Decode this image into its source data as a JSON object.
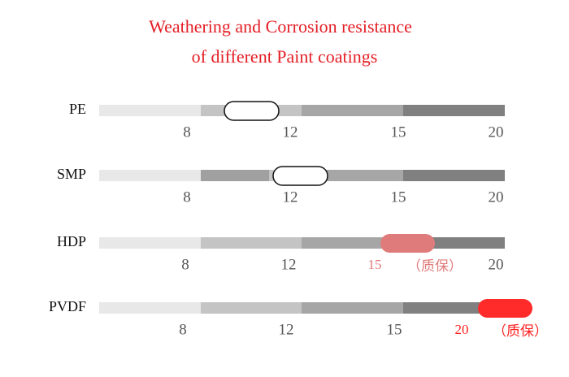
{
  "title": [
    "Weathering and Corrosion resistance",
    "of different Paint coatings"
  ],
  "rows": [
    {
      "name": "PE",
      "ticks": [
        "8",
        "12",
        "15",
        "20"
      ]
    },
    {
      "name": "SMP",
      "ticks": [
        "8",
        "12",
        "15",
        "20"
      ]
    },
    {
      "name": "HDP",
      "ticks": [
        "8",
        "12",
        "15",
        "20"
      ],
      "note": "（质保）"
    },
    {
      "name": "PVDF",
      "ticks": [
        "8",
        "12",
        "15",
        "20"
      ],
      "note": "（质保）"
    }
  ]
}
